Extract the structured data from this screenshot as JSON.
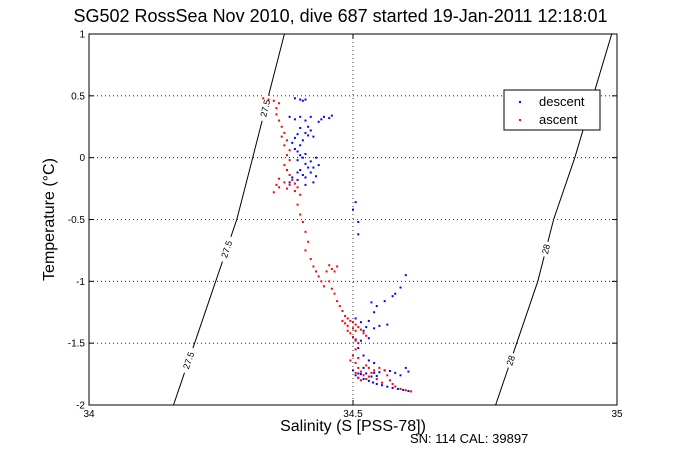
{
  "chart_data": {
    "type": "scatter",
    "title": "SG502 RossSea Nov 2010, dive 687 started 19-Jan-2011 12:18:01",
    "xlabel": "Salinity (S [PSS-78])",
    "ylabel": "Temperature (°C)",
    "footer": "SN: 114  CAL: 39897",
    "xlim": [
      34,
      35
    ],
    "ylim": [
      -2,
      1
    ],
    "xticks": [
      34,
      34.5,
      35
    ],
    "yticks": [
      -2,
      -1.5,
      -1,
      -0.5,
      0,
      0.5,
      1
    ],
    "xtick_labels": [
      "34",
      "34.5",
      "35"
    ],
    "ytick_labels": [
      "-2",
      "-1.5",
      "-1",
      "-0.5",
      "0",
      "0.5",
      "1"
    ],
    "grid": true,
    "legend_position": "top-right",
    "series": [
      {
        "name": "descent",
        "color": "#0000ff",
        "marker": "dot",
        "points": [
          [
            34.605,
            -1.887
          ],
          [
            34.595,
            -1.878
          ],
          [
            34.585,
            -1.87
          ],
          [
            34.575,
            -1.862
          ],
          [
            34.565,
            -1.852
          ],
          [
            34.555,
            -1.84
          ],
          [
            34.545,
            -1.83
          ],
          [
            34.538,
            -1.818
          ],
          [
            34.53,
            -1.805
          ],
          [
            34.52,
            -1.79
          ],
          [
            34.51,
            -1.78
          ],
          [
            34.505,
            -1.76
          ],
          [
            34.515,
            -1.75
          ],
          [
            34.525,
            -1.745
          ],
          [
            34.54,
            -1.74
          ],
          [
            34.55,
            -1.735
          ],
          [
            34.56,
            -1.72
          ],
          [
            34.57,
            -1.725
          ],
          [
            34.58,
            -1.74
          ],
          [
            34.59,
            -1.76
          ],
          [
            34.6,
            -1.7
          ],
          [
            34.605,
            -1.73
          ],
          [
            34.545,
            -1.765
          ],
          [
            34.535,
            -1.77
          ],
          [
            34.51,
            -1.745
          ],
          [
            34.5,
            -1.72
          ],
          [
            34.52,
            -1.7
          ],
          [
            34.54,
            -1.66
          ],
          [
            34.53,
            -1.64
          ],
          [
            34.52,
            -1.6
          ],
          [
            34.51,
            -1.54
          ],
          [
            34.505,
            -1.47
          ],
          [
            34.515,
            -1.48
          ],
          [
            34.53,
            -1.46
          ],
          [
            34.52,
            -1.4
          ],
          [
            34.525,
            -1.37
          ],
          [
            34.515,
            -1.33
          ],
          [
            34.505,
            -1.3
          ],
          [
            34.53,
            -1.32
          ],
          [
            34.54,
            -1.25
          ],
          [
            34.545,
            -1.2
          ],
          [
            34.535,
            -1.17
          ],
          [
            34.56,
            -1.16
          ],
          [
            34.575,
            -1.12
          ],
          [
            34.58,
            -1.1
          ],
          [
            34.6,
            -0.95
          ],
          [
            34.59,
            -1.05
          ],
          [
            34.54,
            -1.38
          ],
          [
            34.55,
            -1.36
          ],
          [
            34.565,
            -1.35
          ],
          [
            34.5,
            -0.42
          ],
          [
            34.505,
            -0.36
          ],
          [
            34.51,
            -0.52
          ],
          [
            34.51,
            -0.62
          ],
          [
            34.455,
            0.32
          ],
          [
            34.46,
            0.34
          ],
          [
            34.445,
            0.33
          ],
          [
            34.435,
            0.29
          ],
          [
            34.44,
            0.31
          ],
          [
            34.42,
            0.33
          ],
          [
            34.41,
            0.3
          ],
          [
            34.4,
            0.33
          ],
          [
            34.39,
            0.31
          ],
          [
            34.38,
            0.33
          ],
          [
            34.39,
            0.48
          ],
          [
            34.4,
            0.47
          ],
          [
            34.405,
            0.46
          ],
          [
            34.41,
            0.47
          ],
          [
            34.41,
            0.2
          ],
          [
            34.415,
            0.18
          ],
          [
            34.42,
            0.22
          ],
          [
            34.425,
            0.17
          ],
          [
            34.405,
            0.14
          ],
          [
            34.4,
            0.1
          ],
          [
            34.395,
            0.05
          ],
          [
            34.4,
            0.02
          ],
          [
            34.41,
            0.03
          ],
          [
            34.405,
            0.0
          ],
          [
            34.395,
            -0.02
          ],
          [
            34.41,
            -0.05
          ],
          [
            34.415,
            -0.08
          ],
          [
            34.4,
            -0.1
          ],
          [
            34.395,
            -0.12
          ],
          [
            34.405,
            -0.14
          ],
          [
            34.41,
            -0.16
          ],
          [
            34.42,
            -0.12
          ],
          [
            34.425,
            -0.08
          ],
          [
            34.42,
            -0.03
          ],
          [
            34.43,
            0.0
          ],
          [
            34.435,
            -0.06
          ],
          [
            34.43,
            -0.15
          ],
          [
            34.425,
            -0.2
          ],
          [
            34.41,
            -0.22
          ],
          [
            34.395,
            -0.18
          ],
          [
            34.385,
            -0.16
          ],
          [
            34.38,
            -0.2
          ],
          [
            34.39,
            0.07
          ],
          [
            34.385,
            0.12
          ],
          [
            34.39,
            0.16
          ],
          [
            34.395,
            0.19
          ],
          [
            34.4,
            0.24
          ],
          [
            34.415,
            0.25
          ]
        ]
      },
      {
        "name": "ascent",
        "color": "#ff0000",
        "marker": "dot",
        "points": [
          [
            34.33,
            0.48
          ],
          [
            34.34,
            0.47
          ],
          [
            34.35,
            0.46
          ],
          [
            34.36,
            0.44
          ],
          [
            34.355,
            0.4
          ],
          [
            34.355,
            0.35
          ],
          [
            34.36,
            0.3
          ],
          [
            34.365,
            0.25
          ],
          [
            34.37,
            0.2
          ],
          [
            34.365,
            0.17
          ],
          [
            34.375,
            0.14
          ],
          [
            34.37,
            0.1
          ],
          [
            34.38,
            0.06
          ],
          [
            34.375,
            0.02
          ],
          [
            34.38,
            -0.02
          ],
          [
            34.37,
            -0.06
          ],
          [
            34.375,
            -0.1
          ],
          [
            34.38,
            -0.14
          ],
          [
            34.385,
            -0.18
          ],
          [
            34.39,
            -0.21
          ],
          [
            34.37,
            -0.2
          ],
          [
            34.36,
            -0.17
          ],
          [
            34.355,
            -0.22
          ],
          [
            34.35,
            -0.28
          ],
          [
            34.36,
            -0.24
          ],
          [
            34.38,
            -0.22
          ],
          [
            34.395,
            -0.24
          ],
          [
            34.39,
            -0.27
          ],
          [
            34.375,
            -0.25
          ],
          [
            34.4,
            -0.3
          ],
          [
            34.395,
            -0.38
          ],
          [
            34.4,
            -0.46
          ],
          [
            34.405,
            -0.52
          ],
          [
            34.41,
            -0.6
          ],
          [
            34.415,
            -0.68
          ],
          [
            34.41,
            -0.75
          ],
          [
            34.42,
            -0.82
          ],
          [
            34.425,
            -0.88
          ],
          [
            34.43,
            -0.92
          ],
          [
            34.435,
            -0.96
          ],
          [
            34.44,
            -1.0
          ],
          [
            34.445,
            -1.04
          ],
          [
            34.45,
            -0.92
          ],
          [
            34.455,
            -0.87
          ],
          [
            34.46,
            -0.9
          ],
          [
            34.465,
            -0.92
          ],
          [
            34.47,
            -0.88
          ],
          [
            34.455,
            -1.0
          ],
          [
            34.46,
            -1.06
          ],
          [
            34.465,
            -1.1
          ],
          [
            34.47,
            -1.16
          ],
          [
            34.475,
            -1.2
          ],
          [
            34.48,
            -1.24
          ],
          [
            34.485,
            -1.28
          ],
          [
            34.49,
            -1.3
          ],
          [
            34.495,
            -1.32
          ],
          [
            34.49,
            -1.36
          ],
          [
            34.5,
            -1.38
          ],
          [
            34.505,
            -1.4
          ],
          [
            34.495,
            -1.42
          ],
          [
            34.5,
            -1.45
          ],
          [
            34.505,
            -1.48
          ],
          [
            34.51,
            -1.5
          ],
          [
            34.505,
            -1.55
          ],
          [
            34.5,
            -1.6
          ],
          [
            34.495,
            -1.64
          ],
          [
            34.505,
            -1.66
          ],
          [
            34.51,
            -1.7
          ],
          [
            34.505,
            -1.74
          ],
          [
            34.51,
            -1.78
          ],
          [
            34.515,
            -1.8
          ],
          [
            34.525,
            -1.79
          ],
          [
            34.53,
            -1.77
          ],
          [
            34.535,
            -1.74
          ],
          [
            34.54,
            -1.72
          ],
          [
            34.55,
            -1.7
          ],
          [
            34.56,
            -1.72
          ],
          [
            34.565,
            -1.76
          ],
          [
            34.57,
            -1.8
          ],
          [
            34.575,
            -1.83
          ],
          [
            34.58,
            -1.85
          ],
          [
            34.59,
            -1.87
          ],
          [
            34.6,
            -1.88
          ],
          [
            34.61,
            -1.89
          ],
          [
            34.555,
            -1.82
          ],
          [
            34.545,
            -1.79
          ],
          [
            34.52,
            -1.76
          ],
          [
            34.515,
            -1.73
          ],
          [
            34.53,
            -1.7
          ],
          [
            34.525,
            -1.68
          ],
          [
            34.51,
            -1.62
          ],
          [
            34.505,
            -1.35
          ],
          [
            34.5,
            -1.33
          ],
          [
            34.51,
            -1.37
          ],
          [
            34.515,
            -1.39
          ],
          [
            34.49,
            -1.4
          ],
          [
            34.485,
            -1.34
          ],
          [
            34.48,
            -1.32
          ],
          [
            34.52,
            -1.42
          ],
          [
            34.525,
            -1.44
          ]
        ]
      }
    ],
    "contours": [
      {
        "label": "27.5",
        "color": "#000000",
        "points": [
          [
            34.16,
            -2.0
          ],
          [
            34.2,
            -1.5
          ],
          [
            34.24,
            -1.0
          ],
          [
            34.28,
            -0.5
          ],
          [
            34.31,
            0.0
          ],
          [
            34.34,
            0.5
          ],
          [
            34.37,
            1.0
          ]
        ]
      },
      {
        "label": "28",
        "color": "#000000",
        "points": [
          [
            34.77,
            -2.0
          ],
          [
            34.81,
            -1.5
          ],
          [
            34.85,
            -1.0
          ],
          [
            34.88,
            -0.5
          ],
          [
            34.92,
            0.0
          ],
          [
            34.955,
            0.5
          ],
          [
            34.99,
            1.0
          ]
        ]
      }
    ]
  }
}
